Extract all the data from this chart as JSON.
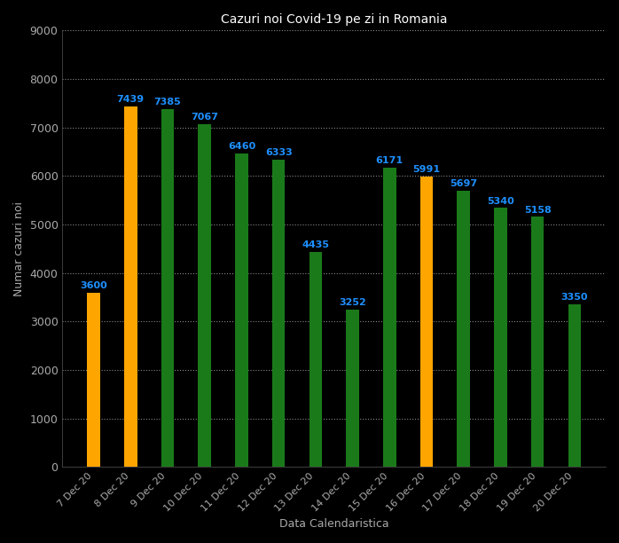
{
  "categories": [
    "7 Dec 20",
    "8 Dec 20",
    "9 Dec 20",
    "10 Dec 20",
    "11 Dec 20",
    "12 Dec 20",
    "13 Dec 20",
    "14 Dec 20",
    "15 Dec 20",
    "16 Dec 20",
    "17 Dec 20",
    "18 Dec 20",
    "19 Dec 20",
    "20 Dec 20"
  ],
  "values": [
    3600,
    7439,
    7385,
    7067,
    6460,
    6333,
    4435,
    3252,
    6171,
    5991,
    5697,
    5340,
    5158,
    3350
  ],
  "bar_colors": [
    "#FFA500",
    "#FFA500",
    "#1a7a1a",
    "#1a7a1a",
    "#1a7a1a",
    "#1a7a1a",
    "#1a7a1a",
    "#1a7a1a",
    "#1a7a1a",
    "#FFA500",
    "#1a7a1a",
    "#1a7a1a",
    "#1a7a1a",
    "#1a7a1a"
  ],
  "title": "Cazuri noi Covid-19 pe zi in Romania",
  "xlabel": "Data Calendaristica",
  "ylabel": "Numar cazuri noi",
  "ylim": [
    0,
    9000
  ],
  "yticks": [
    0,
    1000,
    2000,
    3000,
    4000,
    5000,
    6000,
    7000,
    8000,
    9000
  ],
  "value_color": "#1E90FF",
  "background_color": "#000000",
  "grid_color": "#888888",
  "title_color": "#FFFFFF",
  "label_color": "#AAAAAA",
  "tick_color": "#AAAAAA",
  "value_fontsize": 8,
  "title_fontsize": 10,
  "axis_label_fontsize": 9,
  "bar_width": 0.35
}
